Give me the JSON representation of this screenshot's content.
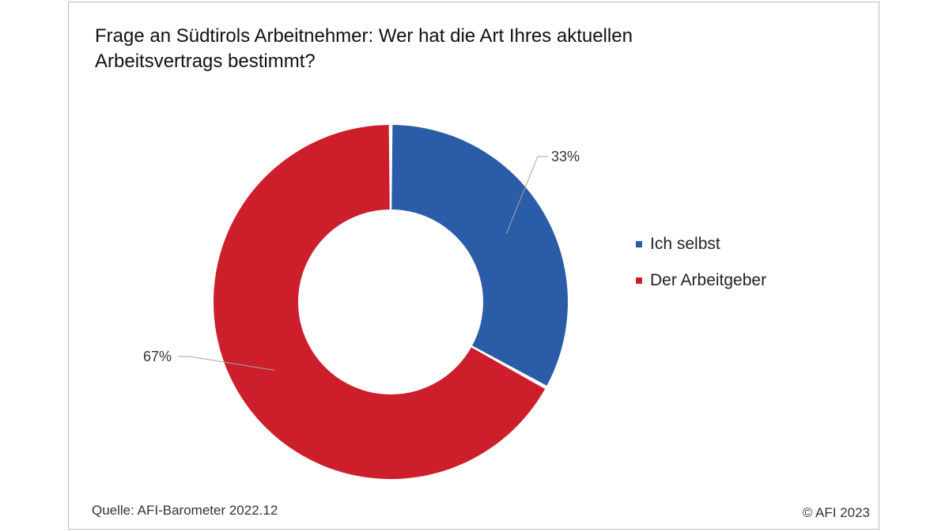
{
  "chart_data": {
    "type": "pie",
    "variant": "donut",
    "title": "Frage an Südtirols Arbeitnehmer: Wer hat die Art Ihres aktuellen Arbeitsvertrags bestimmt?",
    "categories": [
      "Ich selbst",
      "Der Arbeitgeber"
    ],
    "values": [
      33,
      67
    ],
    "data_labels": [
      "33%",
      "67%"
    ],
    "colors": [
      "#2b5ca8",
      "#cc1f2b"
    ],
    "legend_position": "right"
  },
  "footer": {
    "source": "Quelle: AFI-Barometer 2022.12",
    "copyright": "© AFI 2023"
  }
}
